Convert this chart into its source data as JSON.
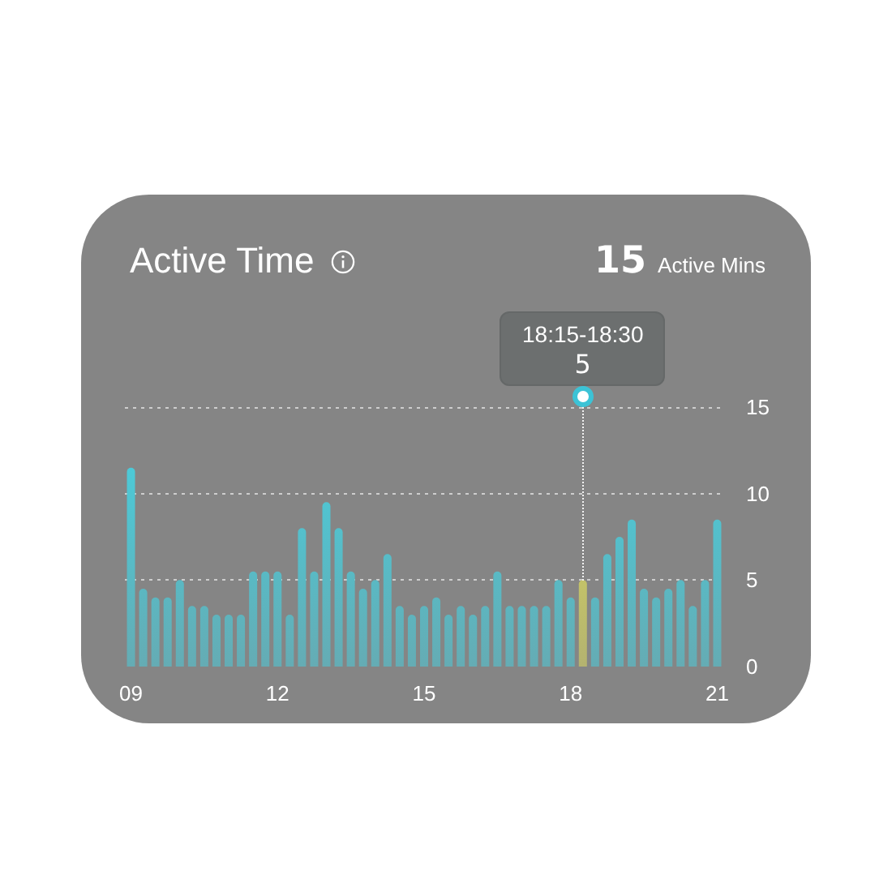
{
  "chart_data": {
    "type": "bar",
    "title": "Active Time",
    "annotations": [
      "15",
      "Active Mins",
      "18:15-18:30"
    ],
    "categories": [
      "09",
      null,
      null,
      null,
      null,
      null,
      null,
      null,
      null,
      null,
      null,
      null,
      "12",
      null,
      null,
      null,
      null,
      null,
      null,
      null,
      null,
      null,
      null,
      null,
      "15",
      null,
      null,
      null,
      null,
      null,
      null,
      null,
      null,
      null,
      null,
      null,
      "18",
      null,
      null,
      null,
      null,
      null,
      null,
      null,
      null,
      null,
      null,
      null,
      "21"
    ],
    "values": [
      11.5,
      4.5,
      4,
      4,
      5,
      3.5,
      3.5,
      3,
      3,
      3,
      5.5,
      5.5,
      5.5,
      3,
      8,
      5.5,
      9.5,
      8,
      5.5,
      4.5,
      5,
      6.5,
      3.5,
      3,
      3.5,
      4,
      3,
      3.5,
      3,
      3.5,
      5.5,
      3.5,
      3.5,
      3.5,
      3.5,
      5,
      4,
      5,
      4,
      6.5,
      7.5,
      8.5,
      4.5,
      4,
      4.5,
      5,
      3.5,
      5,
      8.5
    ],
    "colors": [
      "#45d2e2",
      "#45d2e2",
      "#45d2e2",
      "#45d2e2",
      "#45d2e2",
      "#45d2e2",
      "#45d2e2",
      "#45d2e2",
      "#45d2e2",
      "#45d2e2",
      "#45d2e2",
      "#45d2e2",
      "#45d2e2",
      "#45d2e2",
      "#45d2e2",
      "#45d2e2",
      "#45d2e2",
      "#45d2e2",
      "#45d2e2",
      "#45d2e2",
      "#45d2e2",
      "#45d2e2",
      "#45d2e2",
      "#45d2e2",
      "#45d2e2",
      "#45d2e2",
      "#45d2e2",
      "#45d2e2",
      "#45d2e2",
      "#45d2e2",
      "#45d2e2",
      "#45d2e2",
      "#45d2e2",
      "#45d2e2",
      "#45d2e2",
      "#45d2e2",
      "#45d2e2",
      "#e2e05a",
      "#45d2e2",
      "#45d2e2",
      "#45d2e2",
      "#45d2e2",
      "#45d2e2",
      "#45d2e2",
      "#45d2e2",
      "#45d2e2",
      "#45d2e2",
      "#45d2e2",
      "#45d2e2"
    ],
    "value_labels": [
      null,
      null,
      null,
      null,
      null,
      null,
      null,
      null,
      null,
      null,
      null,
      null,
      null,
      null,
      null,
      null,
      null,
      null,
      null,
      null,
      null,
      null,
      null,
      null,
      null,
      null,
      null,
      null,
      null,
      null,
      null,
      null,
      null,
      null,
      null,
      null,
      null,
      "5",
      null,
      null,
      null,
      null,
      null,
      null,
      null,
      null,
      null,
      null,
      null
    ],
    "ylim": [
      0,
      15
    ],
    "yticks": [
      0,
      5,
      10,
      15
    ],
    "grid": "y"
  }
}
